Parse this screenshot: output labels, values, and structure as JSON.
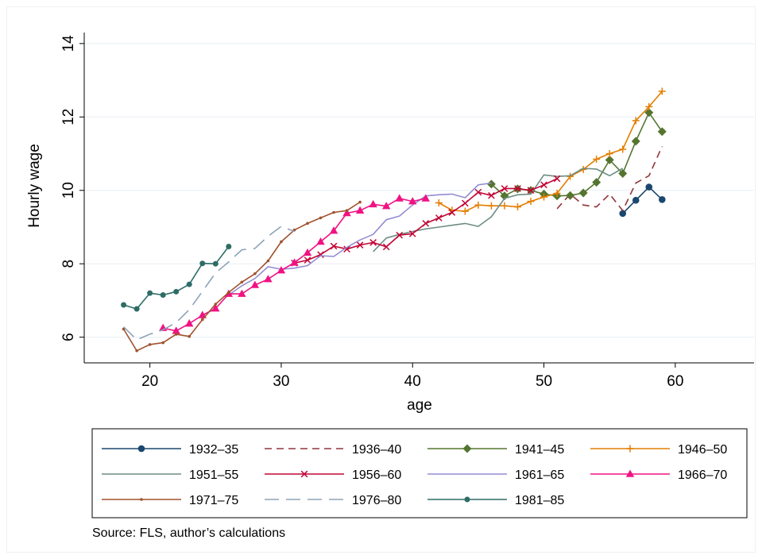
{
  "chart_data": {
    "type": "line",
    "title": "",
    "xlabel": "age",
    "ylabel": "Hourly wage",
    "xlim": [
      15,
      66
    ],
    "ylim": [
      5.3,
      14.3
    ],
    "x_ticks": [
      20,
      30,
      40,
      50,
      60
    ],
    "y_ticks": [
      6,
      8,
      10,
      12,
      14
    ],
    "grid": "horizontal",
    "legend_position": "bottom",
    "source_note": "Source: FLS, author’s calculations",
    "series": [
      {
        "name": "1932–35",
        "color": "#1a476f",
        "marker": "circle",
        "dash": "solid",
        "x": [
          56,
          57,
          58,
          59
        ],
        "y": [
          9.37,
          9.73,
          10.09,
          9.75
        ]
      },
      {
        "name": "1936–40",
        "color": "#90353b",
        "marker": "none",
        "dash": "dash",
        "x": [
          51,
          52,
          53,
          54,
          55,
          56,
          57,
          58,
          59
        ],
        "y": [
          9.5,
          9.9,
          9.6,
          9.55,
          9.9,
          9.45,
          10.2,
          10.4,
          11.2
        ]
      },
      {
        "name": "1941–45",
        "color": "#55752f",
        "marker": "diamond",
        "dash": "solid",
        "x": [
          46,
          47,
          48,
          49,
          50,
          51,
          52,
          53,
          54,
          55,
          56,
          57,
          58,
          59
        ],
        "y": [
          10.17,
          9.85,
          10.04,
          10.0,
          9.9,
          9.85,
          9.86,
          9.93,
          10.22,
          10.83,
          10.46,
          11.34,
          12.12,
          11.6
        ]
      },
      {
        "name": "1946–50",
        "color": "#e37e00",
        "marker": "plus",
        "dash": "solid",
        "x": [
          42,
          43,
          44,
          45,
          46,
          47,
          48,
          49,
          50,
          51,
          52,
          53,
          54,
          55,
          56,
          57,
          58,
          59
        ],
        "y": [
          9.66,
          9.46,
          9.43,
          9.6,
          9.58,
          9.58,
          9.55,
          9.7,
          9.82,
          9.92,
          10.38,
          10.57,
          10.85,
          11.0,
          11.12,
          11.9,
          12.28,
          12.7
        ]
      },
      {
        "name": "1951–55",
        "color": "#6e8e84",
        "marker": "none",
        "dash": "solid",
        "x": [
          37,
          38,
          39,
          40,
          41,
          42,
          43,
          44,
          45,
          46,
          47,
          48,
          49,
          50,
          51,
          52,
          53,
          54,
          55,
          56
        ],
        "y": [
          8.33,
          8.7,
          8.8,
          8.88,
          8.95,
          9.0,
          9.05,
          9.1,
          9.02,
          9.28,
          9.78,
          9.88,
          9.9,
          10.42,
          10.38,
          10.4,
          10.6,
          10.58,
          10.4,
          10.6
        ]
      },
      {
        "name": "1956–60",
        "color": "#c10534",
        "marker": "x",
        "dash": "solid",
        "x": [
          31,
          32,
          33,
          34,
          35,
          36,
          37,
          38,
          39,
          40,
          41,
          42,
          43,
          44,
          45,
          46,
          47,
          48,
          49,
          50,
          51
        ],
        "y": [
          8.02,
          8.1,
          8.25,
          8.48,
          8.4,
          8.51,
          8.58,
          8.46,
          8.78,
          8.82,
          9.1,
          9.25,
          9.4,
          9.65,
          9.95,
          9.86,
          10.05,
          10.05,
          10.0,
          10.15,
          10.32
        ]
      },
      {
        "name": "1961–65",
        "color": "#938dd2",
        "marker": "none",
        "dash": "solid",
        "x": [
          26,
          27,
          28,
          29,
          30,
          31,
          32,
          33,
          34,
          35,
          36,
          37,
          38,
          39,
          40,
          41,
          42,
          43,
          44,
          45,
          46
        ],
        "y": [
          7.15,
          7.4,
          7.6,
          7.92,
          7.85,
          7.88,
          7.95,
          8.22,
          8.2,
          8.45,
          8.65,
          8.8,
          9.2,
          9.3,
          9.6,
          9.85,
          9.88,
          9.9,
          9.8,
          10.15,
          10.2
        ]
      },
      {
        "name": "1966–70",
        "color": "#f01283",
        "marker": "triangle",
        "dash": "solid",
        "x": [
          21,
          22,
          23,
          24,
          25,
          26,
          27,
          28,
          29,
          30,
          31,
          32,
          33,
          34,
          35,
          36,
          37,
          38,
          39,
          40,
          41
        ],
        "y": [
          6.25,
          6.17,
          6.37,
          6.6,
          6.78,
          7.18,
          7.18,
          7.42,
          7.58,
          7.82,
          8.03,
          8.3,
          8.6,
          8.9,
          9.38,
          9.45,
          9.62,
          9.57,
          9.78,
          9.7,
          9.78
        ]
      },
      {
        "name": "1971–75",
        "color": "#a0522d",
        "marker": "dot",
        "dash": "solid",
        "x": [
          18,
          19,
          20,
          21,
          22,
          23,
          24,
          25,
          26,
          27,
          28,
          29,
          30,
          31,
          32,
          33,
          34,
          35,
          36
        ],
        "y": [
          6.22,
          5.63,
          5.8,
          5.85,
          6.08,
          6.02,
          6.48,
          6.9,
          7.22,
          7.5,
          7.73,
          8.08,
          8.6,
          8.92,
          9.1,
          9.25,
          9.4,
          9.45,
          9.68
        ]
      },
      {
        "name": "1976–80",
        "color": "#8ea3b8",
        "marker": "none",
        "dash": "longdash",
        "x": [
          18,
          19,
          20,
          21,
          22,
          23,
          24,
          25,
          26,
          27,
          28,
          29,
          30,
          31
        ],
        "y": [
          6.28,
          5.93,
          6.08,
          6.2,
          6.4,
          6.75,
          7.25,
          7.75,
          8.05,
          8.38,
          8.42,
          8.75,
          9.02,
          8.88
        ]
      },
      {
        "name": "1981–85",
        "color": "#2d6d66",
        "marker": "smallcircle",
        "dash": "solid",
        "x": [
          18,
          19,
          20,
          21,
          22,
          23,
          24,
          25,
          26
        ],
        "y": [
          6.88,
          6.77,
          7.2,
          7.15,
          7.24,
          7.44,
          8.01,
          8.0,
          8.47
        ]
      }
    ]
  }
}
